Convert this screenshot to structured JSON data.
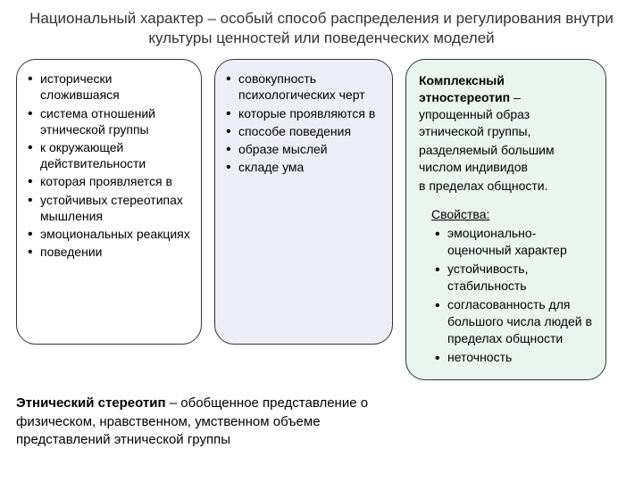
{
  "title": "Национальный характер – особый способ распределения и регулирования внутри культуры ценностей или поведенческих моделей",
  "col1": {
    "items": [
      "исторически сложившаяся",
      "система отношений этнической группы",
      "к окружающей действительности",
      "которая проявляется в",
      "устойчивых стереотипах мышления",
      "эмоциональных реакциях",
      "поведении"
    ],
    "bg": "#ffffff",
    "border": "#333333"
  },
  "col2": {
    "items": [
      "совокупность психологических черт",
      "которые проявляются в",
      "способе поведения",
      "образе мыслей",
      "складе ума"
    ],
    "bg": "#eeeef8",
    "border": "#333333"
  },
  "col3": {
    "head_bold": "Комплексный этностереотип",
    "head_rest": " – упрощенный образ этнической группы,",
    "line2": "разделяемый большим числом индивидов",
    "line3": "в пределах общности.",
    "sub_label": "Свойства",
    "sub_colon": ":",
    "items": [
      "эмоционально-оценочный характер",
      "устойчивость, стабильность",
      "согласованность для большого числа людей в пределах общности",
      "неточность"
    ],
    "bg": "#e9f5ef",
    "border": "#333333"
  },
  "bottom": {
    "bold": "Этнический стереотип",
    "rest": " – обобщенное представление о физическом, нравственном, умственном объеме представлений этнической группы"
  }
}
